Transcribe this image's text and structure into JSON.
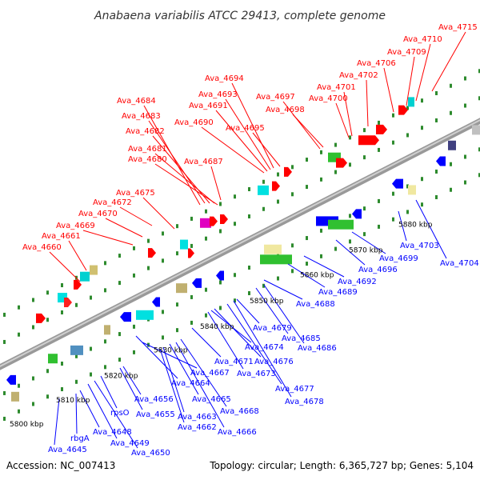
{
  "title": "Anabaena variabilis ATCC 29413, complete genome",
  "footer": {
    "accession": "Accession: NC_007413",
    "summary": "Topology: circular; Length: 6,365,727 bp; Genes: 5,104"
  },
  "colors": {
    "forward_gene": "#ff0000",
    "reverse_gene": "#0000ff",
    "label_forward": "#ff0000",
    "label_reverse": "#0000ff",
    "backbone": "#888888",
    "tick": "#2e8b2e"
  },
  "ruler": [
    {
      "label": "5800 kbp"
    },
    {
      "label": "5810 kbp"
    },
    {
      "label": "5820 kbp"
    },
    {
      "label": "5830 kbp"
    },
    {
      "label": "5840 kbp"
    },
    {
      "label": "5850 kbp"
    },
    {
      "label": "5860 kbp"
    },
    {
      "label": "5870 kbp"
    },
    {
      "label": "5880 kbp"
    }
  ],
  "forward_labels": [
    {
      "text": "Ava_4660"
    },
    {
      "text": "Ava_4661"
    },
    {
      "text": "Ava_4669"
    },
    {
      "text": "Ava_4670"
    },
    {
      "text": "Ava_4672"
    },
    {
      "text": "Ava_4675"
    },
    {
      "text": "Ava_4680"
    },
    {
      "text": "Ava_4681"
    },
    {
      "text": "Ava_4687"
    },
    {
      "text": "Ava_4682"
    },
    {
      "text": "Ava_4683"
    },
    {
      "text": "Ava_4684"
    },
    {
      "text": "Ava_4690"
    },
    {
      "text": "Ava_4691"
    },
    {
      "text": "Ava_4693"
    },
    {
      "text": "Ava_4694"
    },
    {
      "text": "Ava_4695"
    },
    {
      "text": "Ava_4697"
    },
    {
      "text": "Ava_4698"
    },
    {
      "text": "Ava_4700"
    },
    {
      "text": "Ava_4701"
    },
    {
      "text": "Ava_4702"
    },
    {
      "text": "Ava_4706"
    },
    {
      "text": "Ava_4709"
    },
    {
      "text": "Ava_4710"
    },
    {
      "text": "Ava_4715"
    }
  ],
  "reverse_labels": [
    {
      "text": "Ava_4645"
    },
    {
      "text": "rbgA"
    },
    {
      "text": "Ava_4648"
    },
    {
      "text": "Ava_4649"
    },
    {
      "text": "Ava_4650"
    },
    {
      "text": "rpsO"
    },
    {
      "text": "Ava_4655"
    },
    {
      "text": "Ava_4656"
    },
    {
      "text": "Ava_4662"
    },
    {
      "text": "Ava_4663"
    },
    {
      "text": "Ava_4664"
    },
    {
      "text": "Ava_4665"
    },
    {
      "text": "Ava_4666"
    },
    {
      "text": "Ava_4667"
    },
    {
      "text": "Ava_4668"
    },
    {
      "text": "Ava_4671"
    },
    {
      "text": "Ava_4673"
    },
    {
      "text": "Ava_4674"
    },
    {
      "text": "Ava_4676"
    },
    {
      "text": "Ava_4677"
    },
    {
      "text": "Ava_4678"
    },
    {
      "text": "Ava_4679"
    },
    {
      "text": "Ava_4685"
    },
    {
      "text": "Ava_4686"
    },
    {
      "text": "Ava_4688"
    },
    {
      "text": "Ava_4689"
    },
    {
      "text": "Ava_4692"
    },
    {
      "text": "Ava_4696"
    },
    {
      "text": "Ava_4699"
    },
    {
      "text": "Ava_4703"
    },
    {
      "text": "Ava_4704"
    }
  ]
}
